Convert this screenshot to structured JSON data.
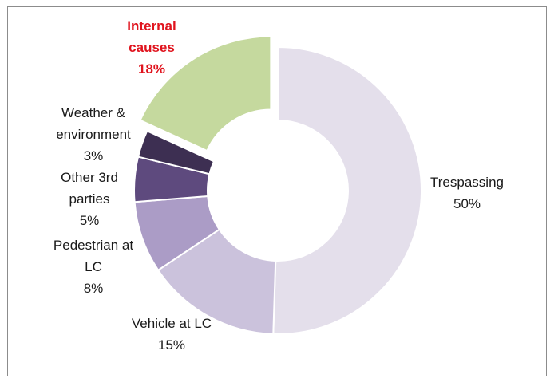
{
  "chart_data": {
    "type": "pie",
    "style": "donut",
    "title": "",
    "slices": [
      {
        "name": "Trespassing",
        "value": 50,
        "pct_label": "50%",
        "color": "#e4dfeb",
        "exploded": false,
        "highlight": false
      },
      {
        "name": "Vehicle at LC",
        "value": 15,
        "pct_label": "15%",
        "color": "#cbc2dc",
        "exploded": false,
        "highlight": false
      },
      {
        "name": "Pedestrian at LC",
        "value": 8,
        "pct_label": "8%",
        "color": "#ab9cc6",
        "exploded": false,
        "highlight": false
      },
      {
        "name": "Other 3rd parties",
        "value": 5,
        "pct_label": "5%",
        "color": "#5e4a7e",
        "exploded": false,
        "highlight": false
      },
      {
        "name": "Weather & environment",
        "value": 3,
        "pct_label": "3%",
        "color": "#3d2f52",
        "exploded": false,
        "highlight": false
      },
      {
        "name": "Internal causes",
        "value": 18,
        "pct_label": "18%",
        "color": "#c5d99e",
        "exploded": true,
        "highlight": true
      }
    ],
    "label_lines": [
      [
        "Trespassing",
        "50%"
      ],
      [
        "Vehicle at LC",
        "15%"
      ],
      [
        "Pedestrian at",
        "LC",
        "8%"
      ],
      [
        "Other 3rd",
        "parties",
        "5%"
      ],
      [
        "Weather &",
        "environment",
        "3%"
      ],
      [
        "Internal",
        "causes",
        "18%"
      ]
    ],
    "highlight_color": "#e0141e",
    "legend": "none"
  }
}
